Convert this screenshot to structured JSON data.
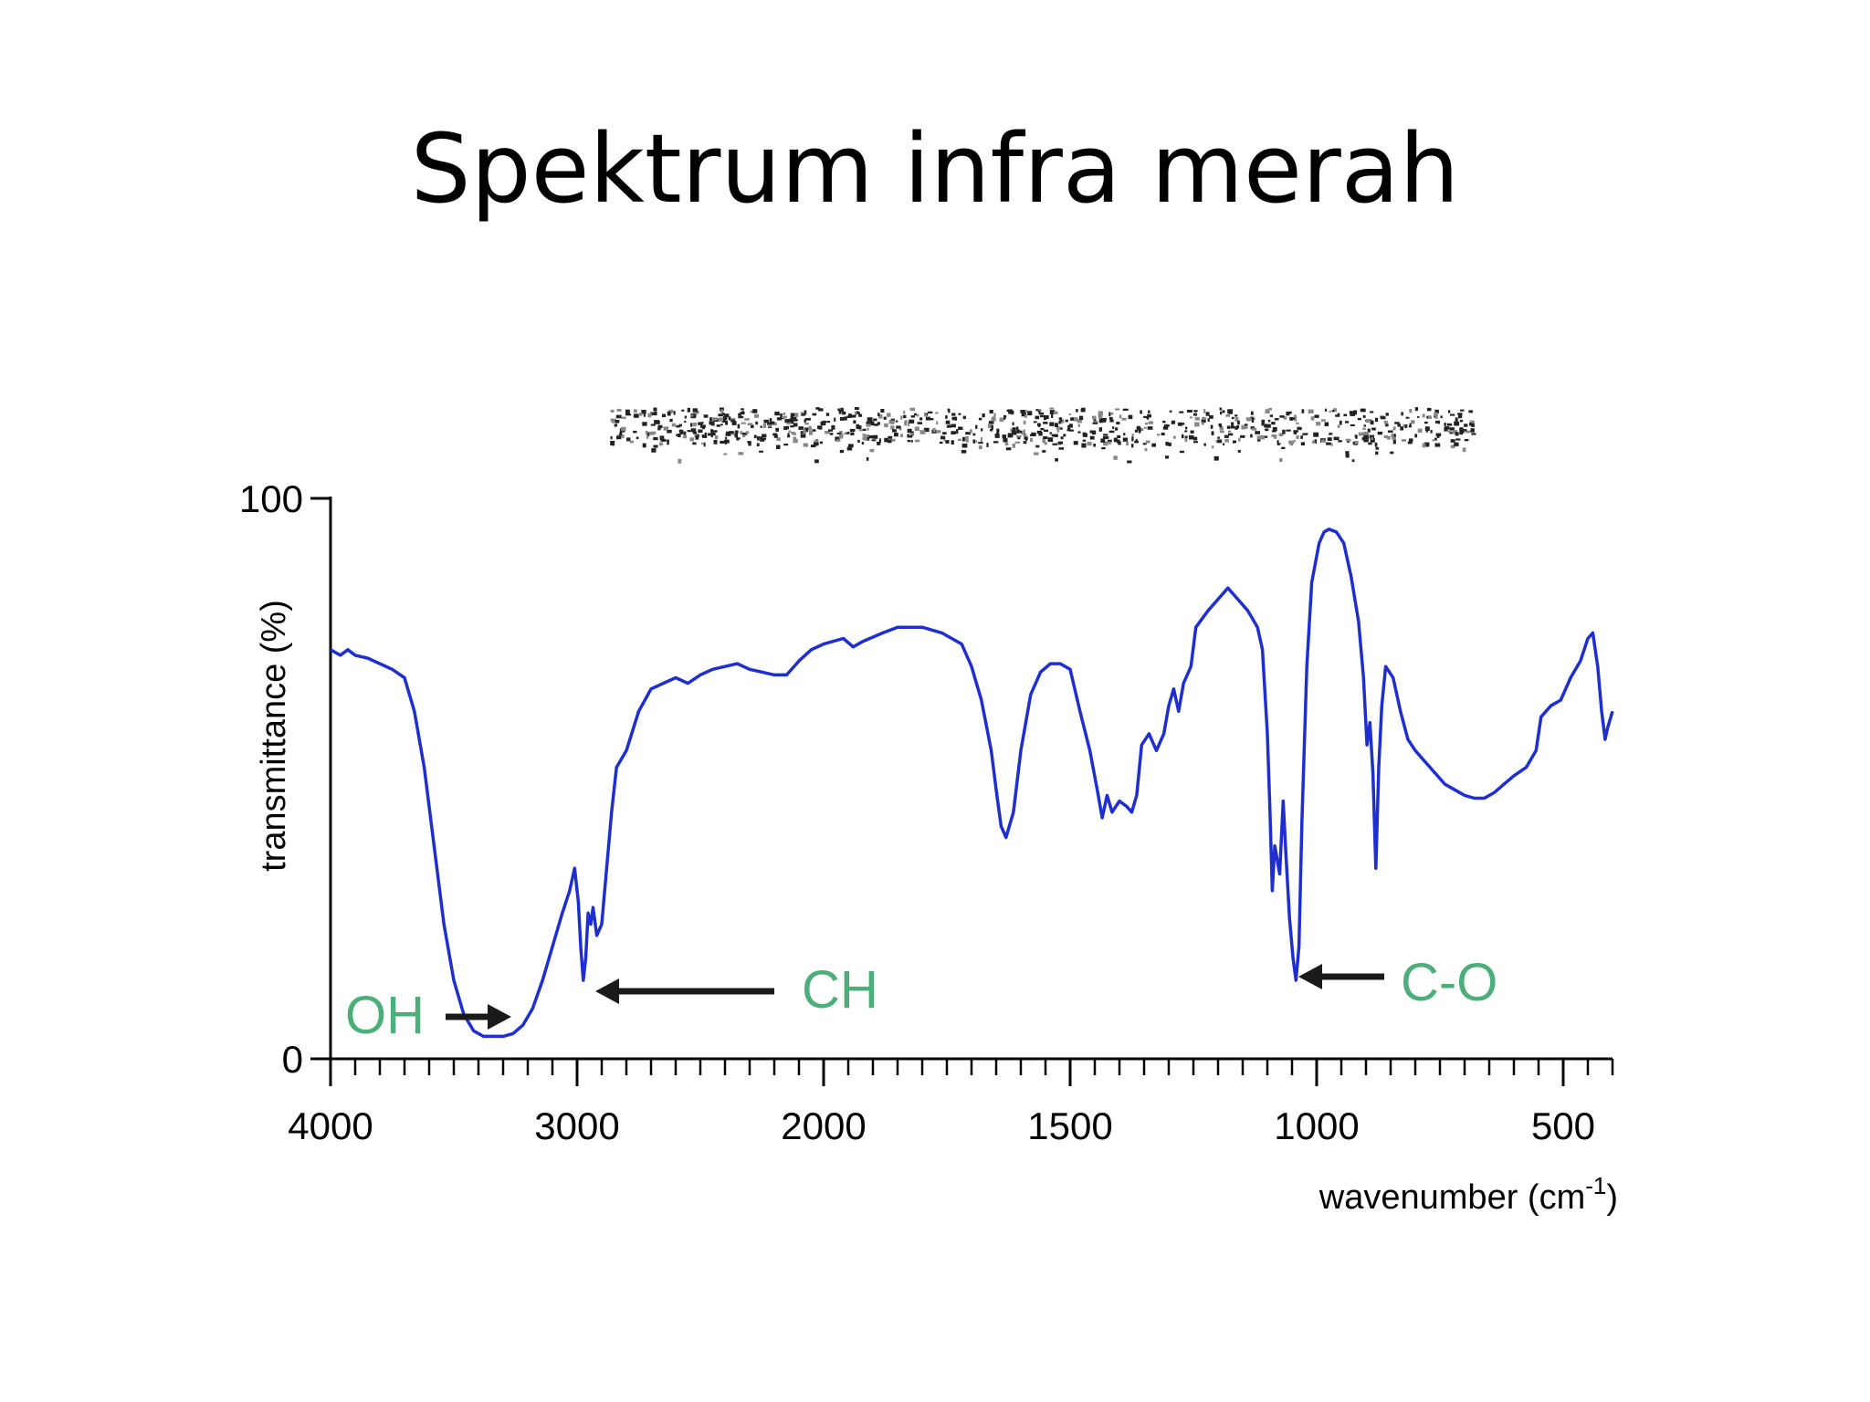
{
  "slide": {
    "title": "Spektrum infra merah"
  },
  "chart_data": {
    "type": "line",
    "title": "",
    "xlabel": "wavenumber (cm",
    "xlabel_sup": "-1",
    "xlabel_close": ")",
    "ylabel": "transmittance (%)",
    "xlim": [
      4000,
      400
    ],
    "ylim": [
      0,
      100
    ],
    "x_ticks": [
      4000,
      3000,
      2000,
      1500,
      1000,
      500
    ],
    "y_ticks": [
      0,
      100
    ],
    "grid": false,
    "line_color": "#1f2fcf",
    "annotation_color": "#4caf7a",
    "series": [
      {
        "name": "transmittance",
        "points": [
          [
            4000,
            73
          ],
          [
            3960,
            72
          ],
          [
            3930,
            73
          ],
          [
            3900,
            72
          ],
          [
            3850,
            71.5
          ],
          [
            3800,
            70.5
          ],
          [
            3750,
            69.5
          ],
          [
            3700,
            68
          ],
          [
            3660,
            62
          ],
          [
            3620,
            52
          ],
          [
            3580,
            38
          ],
          [
            3540,
            24
          ],
          [
            3500,
            14
          ],
          [
            3460,
            8
          ],
          [
            3420,
            5
          ],
          [
            3380,
            4
          ],
          [
            3340,
            4
          ],
          [
            3300,
            4
          ],
          [
            3260,
            4.5
          ],
          [
            3220,
            6
          ],
          [
            3180,
            9
          ],
          [
            3140,
            14
          ],
          [
            3100,
            20
          ],
          [
            3060,
            26
          ],
          [
            3030,
            30
          ],
          [
            3010,
            34
          ],
          [
            2995,
            28
          ],
          [
            2985,
            20
          ],
          [
            2975,
            14
          ],
          [
            2965,
            18
          ],
          [
            2955,
            26
          ],
          [
            2945,
            24
          ],
          [
            2935,
            27
          ],
          [
            2920,
            22
          ],
          [
            2900,
            24
          ],
          [
            2880,
            34
          ],
          [
            2860,
            44
          ],
          [
            2840,
            52
          ],
          [
            2800,
            55
          ],
          [
            2750,
            62
          ],
          [
            2700,
            66
          ],
          [
            2650,
            67
          ],
          [
            2600,
            68
          ],
          [
            2550,
            67
          ],
          [
            2500,
            68.5
          ],
          [
            2450,
            69.5
          ],
          [
            2400,
            70
          ],
          [
            2350,
            70.5
          ],
          [
            2300,
            69.5
          ],
          [
            2250,
            69
          ],
          [
            2200,
            68.5
          ],
          [
            2150,
            68.5
          ],
          [
            2100,
            71
          ],
          [
            2050,
            73
          ],
          [
            2000,
            74
          ],
          [
            1960,
            75
          ],
          [
            1940,
            73.5
          ],
          [
            1920,
            74.5
          ],
          [
            1880,
            76
          ],
          [
            1850,
            77
          ],
          [
            1800,
            77
          ],
          [
            1760,
            76
          ],
          [
            1720,
            74
          ],
          [
            1700,
            70
          ],
          [
            1680,
            64
          ],
          [
            1660,
            55
          ],
          [
            1650,
            48
          ],
          [
            1640,
            41.5
          ],
          [
            1630,
            39.5
          ],
          [
            1615,
            44
          ],
          [
            1600,
            55
          ],
          [
            1580,
            65
          ],
          [
            1560,
            69
          ],
          [
            1540,
            70.5
          ],
          [
            1520,
            70.5
          ],
          [
            1500,
            69.5
          ],
          [
            1480,
            62
          ],
          [
            1460,
            55
          ],
          [
            1445,
            48
          ],
          [
            1435,
            43
          ],
          [
            1425,
            47
          ],
          [
            1415,
            44
          ],
          [
            1400,
            46
          ],
          [
            1385,
            45
          ],
          [
            1375,
            44
          ],
          [
            1365,
            47
          ],
          [
            1355,
            56
          ],
          [
            1340,
            58
          ],
          [
            1325,
            55
          ],
          [
            1310,
            58
          ],
          [
            1300,
            63
          ],
          [
            1290,
            66
          ],
          [
            1280,
            62
          ],
          [
            1270,
            67
          ],
          [
            1255,
            70
          ],
          [
            1245,
            77
          ],
          [
            1220,
            80
          ],
          [
            1200,
            82
          ],
          [
            1180,
            84
          ],
          [
            1160,
            82
          ],
          [
            1140,
            80
          ],
          [
            1120,
            77
          ],
          [
            1110,
            73
          ],
          [
            1100,
            58
          ],
          [
            1095,
            45
          ],
          [
            1090,
            30
          ],
          [
            1085,
            38
          ],
          [
            1075,
            33
          ],
          [
            1068,
            46
          ],
          [
            1062,
            36
          ],
          [
            1055,
            25
          ],
          [
            1048,
            18
          ],
          [
            1042,
            14
          ],
          [
            1036,
            20
          ],
          [
            1030,
            42
          ],
          [
            1020,
            70
          ],
          [
            1010,
            85
          ],
          [
            995,
            92
          ],
          [
            985,
            94
          ],
          [
            975,
            94.5
          ],
          [
            960,
            94
          ],
          [
            945,
            92
          ],
          [
            930,
            86
          ],
          [
            915,
            78
          ],
          [
            905,
            68
          ],
          [
            898,
            56
          ],
          [
            892,
            60
          ],
          [
            886,
            51
          ],
          [
            880,
            34
          ],
          [
            874,
            52
          ],
          [
            868,
            63
          ],
          [
            860,
            70
          ],
          [
            845,
            68
          ],
          [
            830,
            62
          ],
          [
            815,
            57
          ],
          [
            800,
            55
          ],
          [
            780,
            53
          ],
          [
            760,
            51
          ],
          [
            740,
            49
          ],
          [
            720,
            48
          ],
          [
            700,
            47
          ],
          [
            680,
            46.5
          ],
          [
            660,
            46.5
          ],
          [
            640,
            47.5
          ],
          [
            620,
            49
          ],
          [
            600,
            50.5
          ],
          [
            575,
            52
          ],
          [
            555,
            55
          ],
          [
            545,
            61
          ],
          [
            525,
            63
          ],
          [
            505,
            64
          ],
          [
            485,
            68
          ],
          [
            465,
            71
          ],
          [
            450,
            75
          ],
          [
            440,
            76
          ],
          [
            430,
            70
          ],
          [
            422,
            62
          ],
          [
            415,
            57
          ],
          [
            410,
            59
          ],
          [
            400,
            62
          ]
        ]
      }
    ],
    "annotations": [
      {
        "label": "OH",
        "x": 3350,
        "y": 4
      },
      {
        "label": "CH",
        "x": 2960,
        "y": 12
      },
      {
        "label": "C-O",
        "x": 1040,
        "y": 15
      }
    ],
    "header_noise": "spectrum header (illegible)"
  },
  "colors": {
    "axis": "#000000",
    "arrow": "#1a1a1a"
  }
}
